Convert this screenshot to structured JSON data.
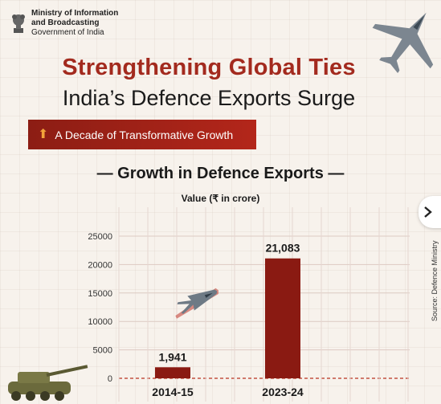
{
  "header": {
    "ministry_line1": "Ministry of Information",
    "ministry_line2": "and Broadcasting",
    "ministry_line3": "Government of India"
  },
  "titles": {
    "headline": "Strengthening Global Ties",
    "subheadline": "India’s Defence Exports Surge",
    "banner": "A Decade of Transformative Growth"
  },
  "source": "Source: Defence Ministry",
  "icons": {
    "emblem": "national-emblem-icon",
    "banner_arrow": "up-arrow-icon",
    "jet": "fighter-jet-icon",
    "tank": "artillery-tank-icon",
    "nav": "chevron-right-icon"
  },
  "colors": {
    "accent": "#a32a1e",
    "bar": "#8a1a12",
    "background": "#f7f2ec"
  },
  "chart_data": {
    "type": "bar",
    "title": "— Growth in Defence Exports —",
    "ylabel": "Value (₹ in crore)",
    "xlabel": "",
    "categories": [
      "2014-15",
      "2023-24"
    ],
    "values": [
      1941,
      21083
    ],
    "data_labels": [
      "1,941",
      "21,083"
    ],
    "ylim": [
      0,
      25000
    ],
    "yticks": [
      0,
      5000,
      10000,
      15000,
      20000,
      25000
    ],
    "grid": true,
    "legend": "none"
  }
}
